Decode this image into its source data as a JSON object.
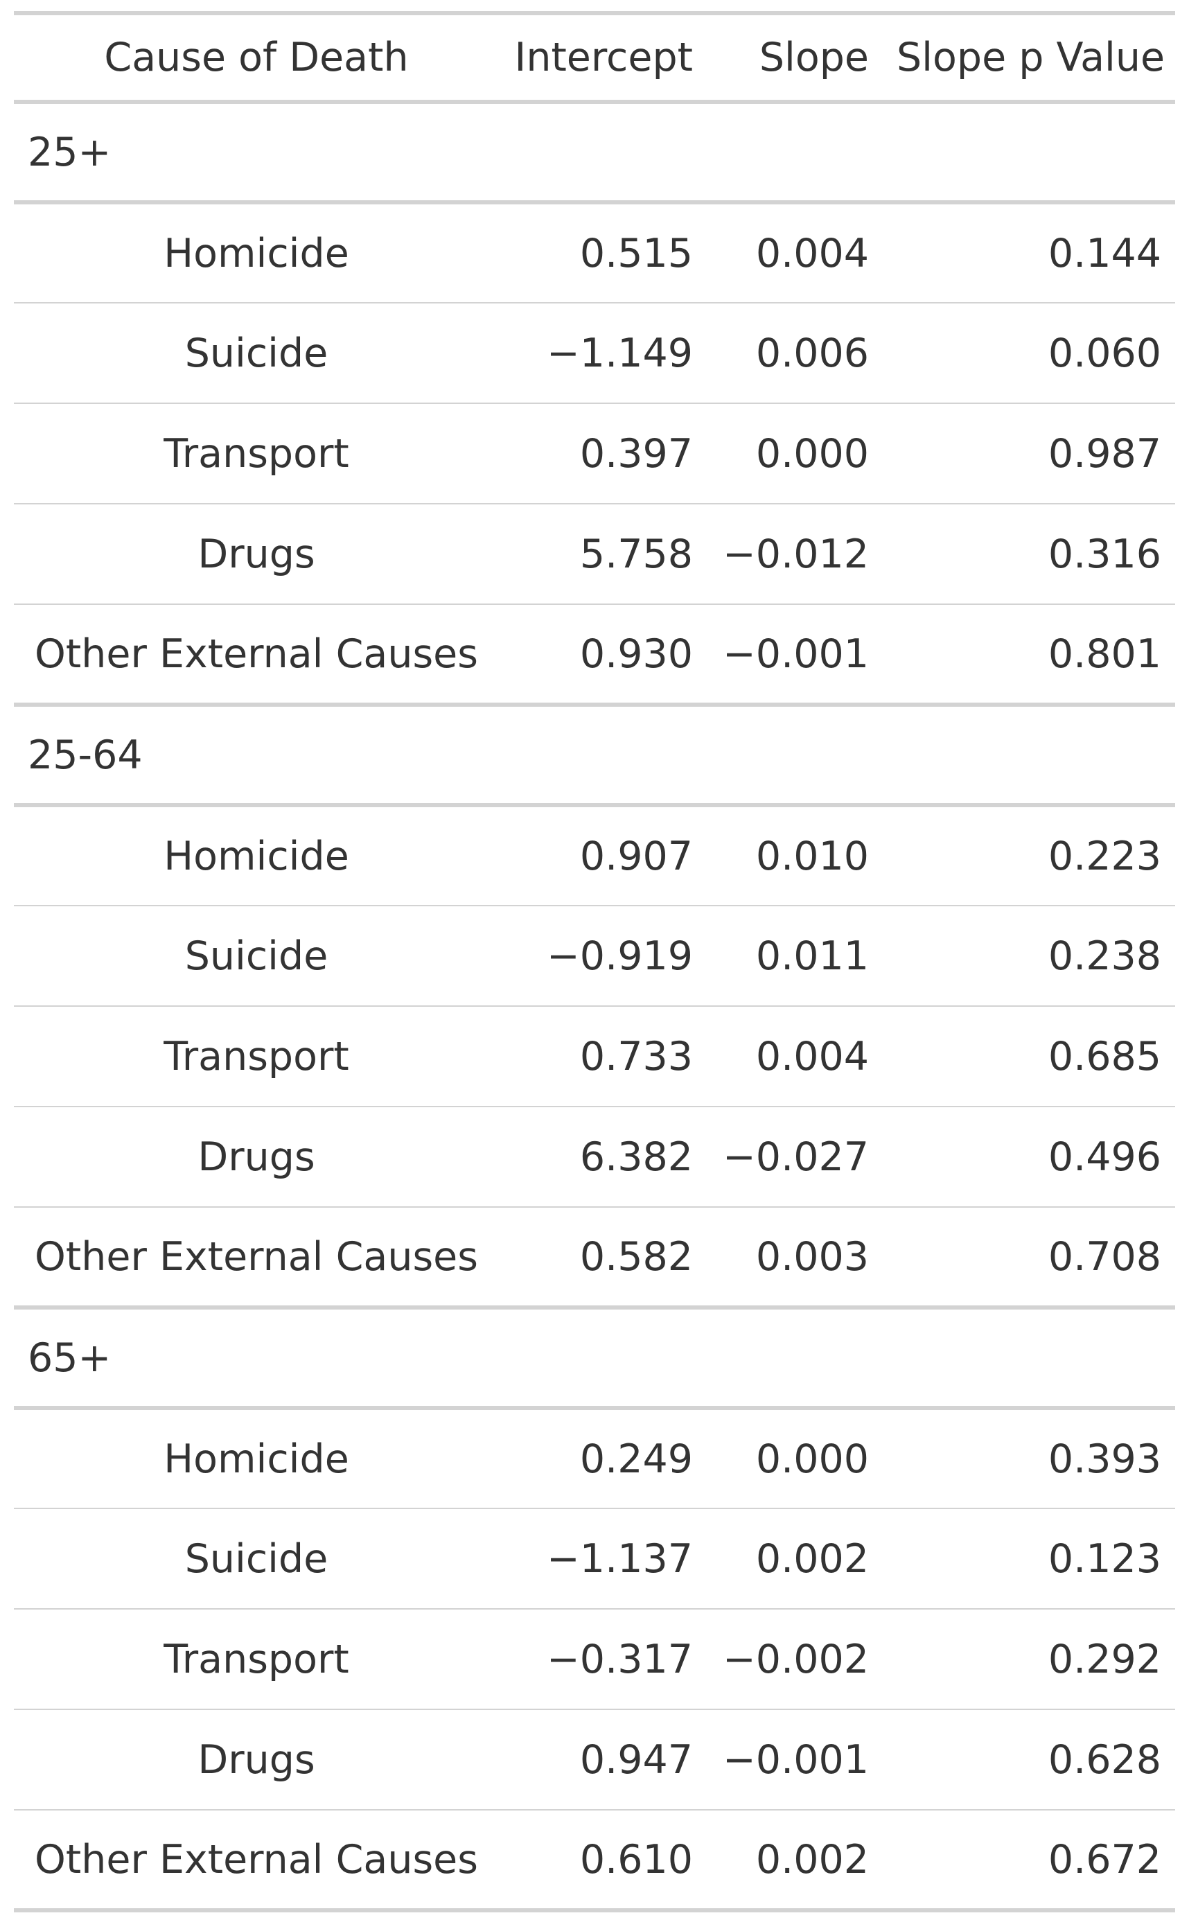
{
  "chart_data": {
    "type": "table",
    "columns": [
      "Cause of Death",
      "Intercept",
      "Slope",
      "Slope p Value"
    ],
    "groups": [
      {
        "label": "25+",
        "rows": [
          {
            "cause": "Homicide",
            "intercept": "0.515",
            "slope": "0.004",
            "p_value": "0.144"
          },
          {
            "cause": "Suicide",
            "intercept": "−1.149",
            "slope": "0.006",
            "p_value": "0.060"
          },
          {
            "cause": "Transport",
            "intercept": "0.397",
            "slope": "0.000",
            "p_value": "0.987"
          },
          {
            "cause": "Drugs",
            "intercept": "5.758",
            "slope": "−0.012",
            "p_value": "0.316"
          },
          {
            "cause": "Other External Causes",
            "intercept": "0.930",
            "slope": "−0.001",
            "p_value": "0.801"
          }
        ]
      },
      {
        "label": "25-64",
        "rows": [
          {
            "cause": "Homicide",
            "intercept": "0.907",
            "slope": "0.010",
            "p_value": "0.223"
          },
          {
            "cause": "Suicide",
            "intercept": "−0.919",
            "slope": "0.011",
            "p_value": "0.238"
          },
          {
            "cause": "Transport",
            "intercept": "0.733",
            "slope": "0.004",
            "p_value": "0.685"
          },
          {
            "cause": "Drugs",
            "intercept": "6.382",
            "slope": "−0.027",
            "p_value": "0.496"
          },
          {
            "cause": "Other External Causes",
            "intercept": "0.582",
            "slope": "0.003",
            "p_value": "0.708"
          }
        ]
      },
      {
        "label": "65+",
        "rows": [
          {
            "cause": "Homicide",
            "intercept": "0.249",
            "slope": "0.000",
            "p_value": "0.393"
          },
          {
            "cause": "Suicide",
            "intercept": "−1.137",
            "slope": "0.002",
            "p_value": "0.123"
          },
          {
            "cause": "Transport",
            "intercept": "−0.317",
            "slope": "−0.002",
            "p_value": "0.292"
          },
          {
            "cause": "Drugs",
            "intercept": "0.947",
            "slope": "−0.001",
            "p_value": "0.628"
          },
          {
            "cause": "Other External Causes",
            "intercept": "0.610",
            "slope": "0.002",
            "p_value": "0.672"
          }
        ]
      }
    ]
  }
}
